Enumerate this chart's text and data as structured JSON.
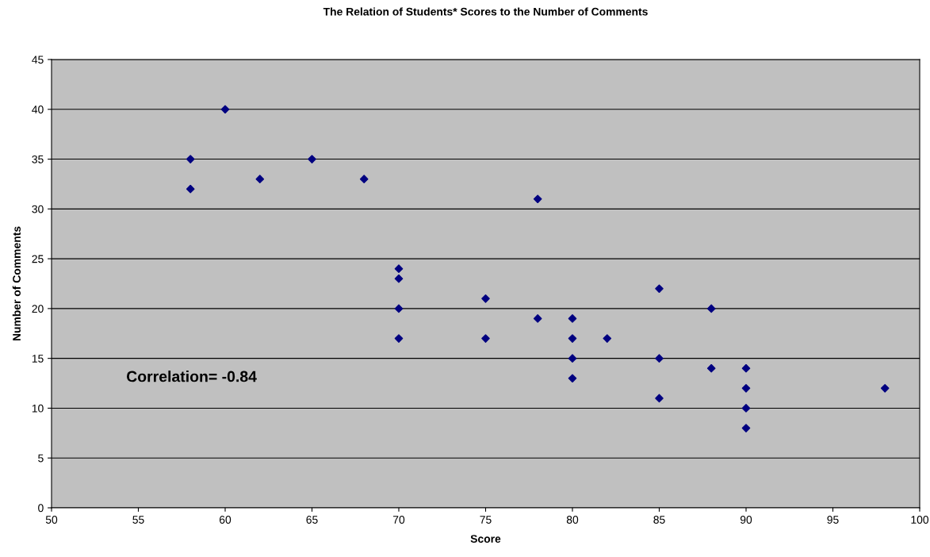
{
  "chart_data": {
    "type": "scatter",
    "title": "The Relation of Students* Scores to the Number of Comments",
    "xlabel": "Score",
    "ylabel": "Number of Comments",
    "annotations": [
      "Correlation= -0.84"
    ],
    "x": [
      58,
      58,
      60,
      62,
      65,
      68,
      70,
      70,
      70,
      70,
      75,
      75,
      78,
      78,
      80,
      80,
      80,
      80,
      82,
      85,
      85,
      85,
      88,
      88,
      90,
      90,
      90,
      90,
      98
    ],
    "series": [
      {
        "color": "#000080",
        "values": [
          35,
          32,
          40,
          33,
          35,
          33,
          24,
          23,
          20,
          17,
          21,
          17,
          31,
          19,
          19,
          17,
          15,
          13,
          17,
          22,
          15,
          11,
          20,
          14,
          14,
          12,
          10,
          8,
          12
        ]
      }
    ],
    "xlim": [
      50,
      100
    ],
    "xticks": [
      50,
      55,
      60,
      65,
      70,
      75,
      80,
      85,
      90,
      95,
      100
    ],
    "ylim": [
      0,
      45
    ],
    "yticks": [
      0,
      5,
      10,
      15,
      20,
      25,
      30,
      35,
      40,
      45
    ],
    "grid": "y",
    "marker": "diamond"
  }
}
